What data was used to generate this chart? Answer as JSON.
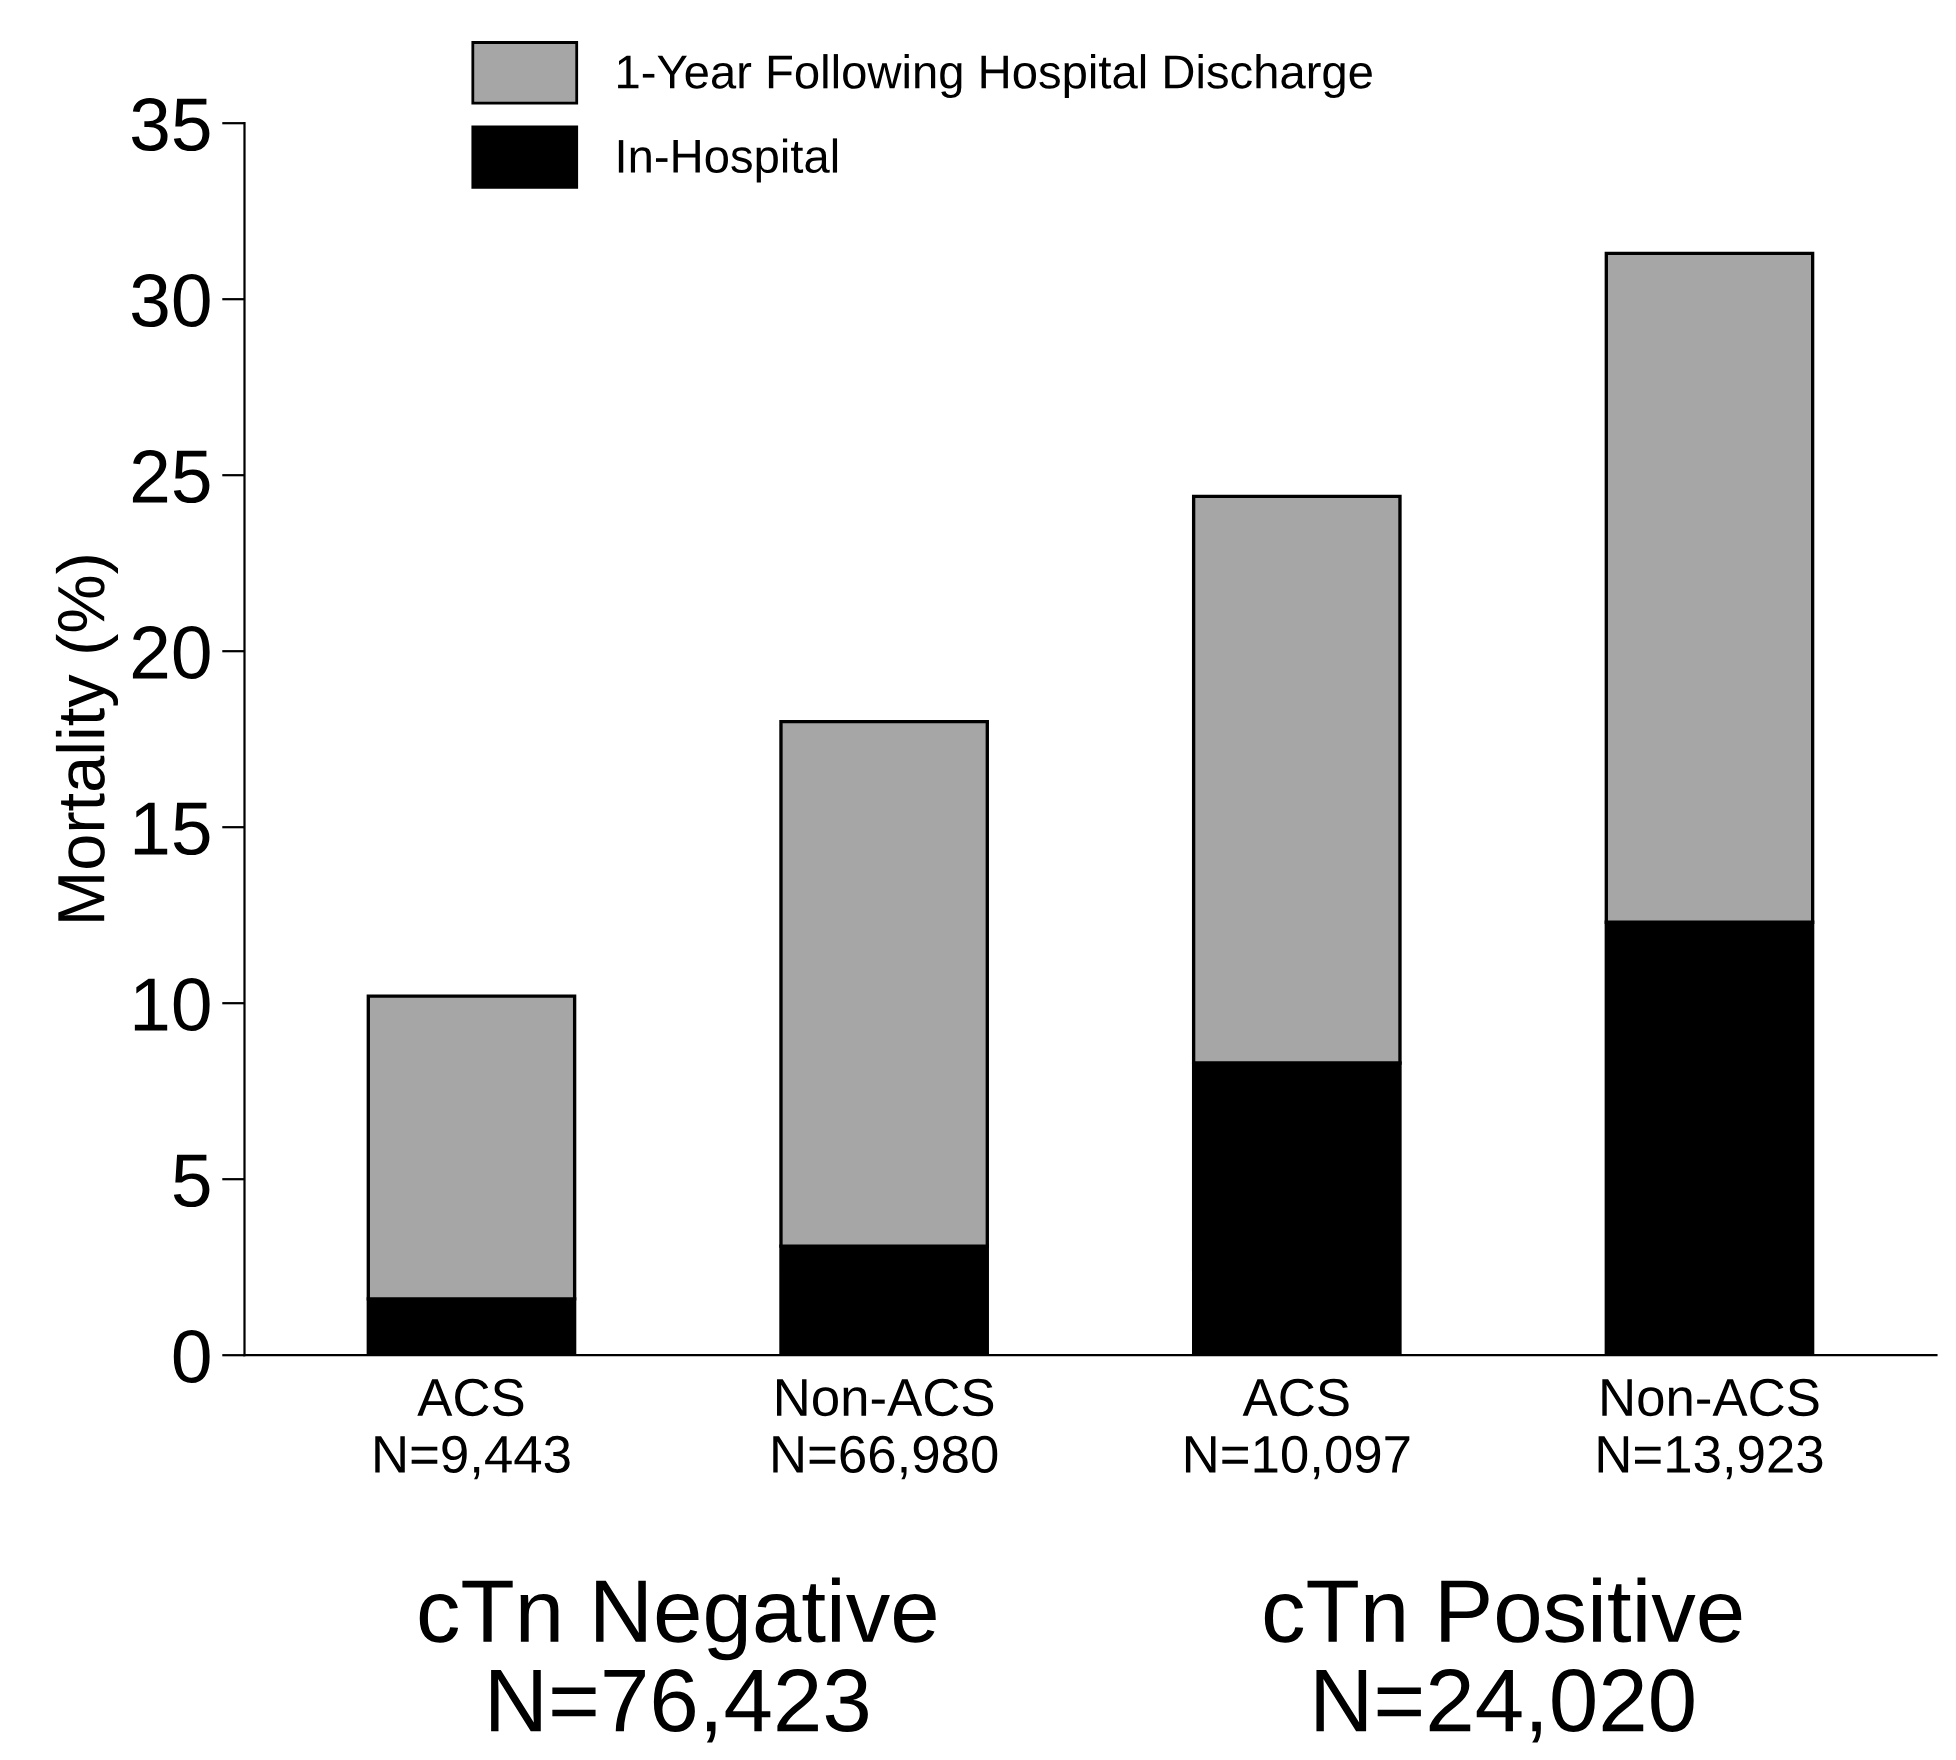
{
  "chart_data": {
    "type": "bar",
    "stacked": true,
    "ylabel": "Mortality (%)",
    "categories": [
      "ACS\nN=9,443",
      "Non-ACS\nN=66,980",
      "ACS\nN=10,097",
      "Non-ACS\nN=13,923"
    ],
    "series": [
      {
        "name": "In-Hospital",
        "color": "#000000",
        "values": [
          1.6,
          3.1,
          8.3,
          12.3
        ]
      },
      {
        "name": "1-Year Following Hospital Discharge",
        "color": "#a6a6a6",
        "values": [
          8.6,
          14.9,
          16.1,
          19.0
        ]
      }
    ],
    "ylim": [
      0,
      35
    ],
    "yticks": [
      0,
      5,
      10,
      15,
      20,
      25,
      30,
      35
    ],
    "grid": false,
    "legend": "top",
    "annotations": [
      "cTn Negative\nN=76,423",
      "cTn Positive\nN=24,020"
    ]
  }
}
